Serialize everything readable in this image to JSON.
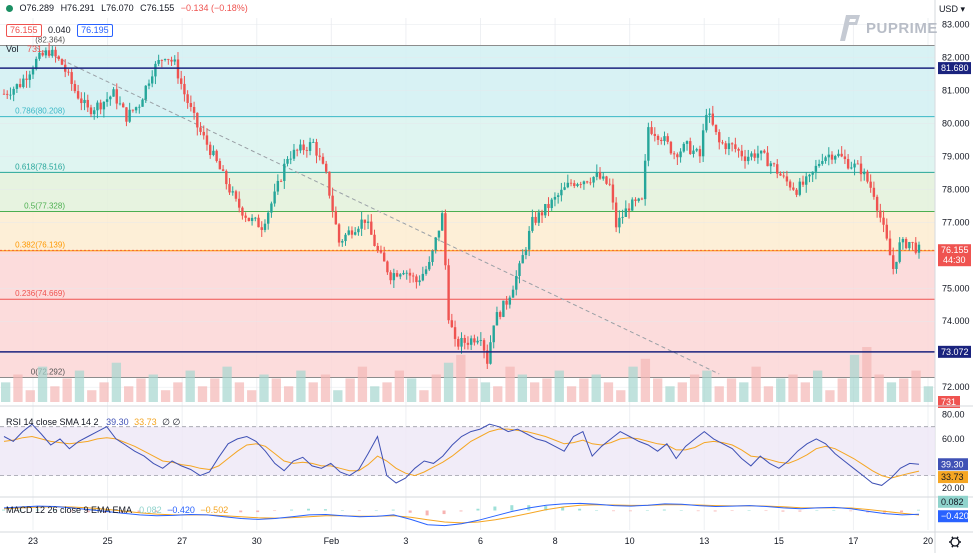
{
  "header": {
    "ohlc": {
      "open": "O76.289",
      "high": "H76.291",
      "low": "L76.070",
      "close": "C76.155",
      "change": "−0.134 (−0.18%)"
    },
    "bid": "76.155",
    "spread": "0.040",
    "ask": "76.195",
    "currency": "USD",
    "volume_label": "Vol",
    "volume_value": "731",
    "brand": "PUPRIME"
  },
  "colors": {
    "up": "#26a69a",
    "down": "#ef5350",
    "level_line": "#1a237e",
    "price_tag": "#ef5350",
    "rsi_line": "#3f51b5",
    "rsi_sma": "#f5a623",
    "macd_line": "#2962ff",
    "signal_line": "#f5a623"
  },
  "chart_data": [
    {
      "type": "candlestick",
      "title": "",
      "x_ticks": [
        "23",
        "25",
        "27",
        "30",
        "Feb",
        "3",
        "6",
        "8",
        "10",
        "13",
        "15",
        "17",
        "20"
      ],
      "y_ticks": [
        "83.000",
        "82.000",
        "81.000",
        "80.000",
        "79.000",
        "78.000",
        "77.000",
        "76.000",
        "75.000",
        "74.000",
        "73.000",
        "72.000"
      ],
      "ylim": [
        71.55,
        83.2
      ],
      "grid": true,
      "last_price": 76.155,
      "last_price_label": "76.155",
      "countdown": "44:30",
      "horizontal_levels": [
        {
          "value": 81.68,
          "label": "81.680"
        },
        {
          "value": 73.072,
          "label": "73.072"
        }
      ],
      "fibonacci": {
        "levels": [
          {
            "ratio": "1",
            "value": 82.364,
            "label": "(82.364)",
            "fill": "#e0e0e0",
            "line": "#8c8c8c"
          },
          {
            "ratio": "0.786",
            "value": 80.208,
            "label": "0.786(80.208)",
            "fill": "#d1f0f2",
            "line": "#3bb8c6"
          },
          {
            "ratio": "0.618",
            "value": 78.516,
            "label": "0.618(78.516)",
            "fill": "#d9f3ee",
            "line": "#26a69a"
          },
          {
            "ratio": "0.5",
            "value": 77.328,
            "label": "0.5(77.328)",
            "fill": "#e3f1da",
            "line": "#4caf50"
          },
          {
            "ratio": "0.382",
            "value": 76.139,
            "label": "0.382(76.139)",
            "fill": "#fdecd0",
            "line": "#ff9800"
          },
          {
            "ratio": "0.236",
            "value": 74.669,
            "label": "0.236(74.669)",
            "fill": "#fbd6d6",
            "line": "#ef5350"
          },
          {
            "ratio": "0",
            "value": 72.292,
            "label": "0(72.292)",
            "fill": "#fbd6d6",
            "line": "#8c8c8c"
          }
        ]
      },
      "close_path": [
        [
          0,
          80.9
        ],
        [
          5,
          81.2
        ],
        [
          10,
          81.9
        ],
        [
          14,
          82.2
        ],
        [
          18,
          81.8
        ],
        [
          22,
          81.0
        ],
        [
          26,
          80.4
        ],
        [
          30,
          80.6
        ],
        [
          34,
          80.9
        ],
        [
          38,
          80.2
        ],
        [
          42,
          80.6
        ],
        [
          46,
          81.6
        ],
        [
          50,
          82.1
        ],
        [
          53,
          81.8
        ],
        [
          56,
          80.9
        ],
        [
          60,
          79.9
        ],
        [
          64,
          79.2
        ],
        [
          68,
          78.4
        ],
        [
          72,
          77.6
        ],
        [
          76,
          77.1
        ],
        [
          80,
          76.9
        ],
        [
          84,
          77.8
        ],
        [
          88,
          79.0
        ],
        [
          92,
          79.2
        ],
        [
          96,
          79.4
        ],
        [
          100,
          78.4
        ],
        [
          104,
          76.4
        ],
        [
          108,
          76.8
        ],
        [
          112,
          77.1
        ],
        [
          116,
          76.1
        ],
        [
          120,
          75.4
        ],
        [
          124,
          75.6
        ],
        [
          128,
          75.2
        ],
        [
          132,
          75.7
        ],
        [
          136,
          77.2
        ],
        [
          138,
          74.2
        ],
        [
          140,
          73.3
        ],
        [
          144,
          73.4
        ],
        [
          148,
          73.6
        ],
        [
          150,
          72.8
        ],
        [
          152,
          74.0
        ],
        [
          156,
          74.6
        ],
        [
          160,
          75.6
        ],
        [
          164,
          77.0
        ],
        [
          168,
          77.4
        ],
        [
          172,
          77.8
        ],
        [
          176,
          78.2
        ],
        [
          180,
          78.3
        ],
        [
          184,
          78.4
        ],
        [
          188,
          78.1
        ],
        [
          190,
          76.9
        ],
        [
          194,
          77.5
        ],
        [
          198,
          77.6
        ],
        [
          200,
          79.9
        ],
        [
          204,
          79.6
        ],
        [
          208,
          79.1
        ],
        [
          212,
          79.3
        ],
        [
          216,
          79.0
        ],
        [
          218,
          80.4
        ],
        [
          222,
          79.4
        ],
        [
          226,
          79.3
        ],
        [
          230,
          79.0
        ],
        [
          234,
          79.1
        ],
        [
          238,
          78.8
        ],
        [
          242,
          78.3
        ],
        [
          246,
          78.0
        ],
        [
          250,
          78.3
        ],
        [
          254,
          79.0
        ],
        [
          258,
          79.1
        ],
        [
          262,
          78.8
        ],
        [
          266,
          78.6
        ],
        [
          270,
          77.9
        ],
        [
          274,
          76.4
        ],
        [
          276,
          75.6
        ],
        [
          278,
          76.3
        ],
        [
          281,
          76.4
        ],
        [
          284,
          76.155
        ]
      ],
      "volume_bars": [
        5,
        7,
        3,
        9,
        4,
        6,
        8,
        3,
        5,
        10,
        4,
        6,
        7,
        3,
        5,
        8,
        4,
        6,
        9,
        5,
        3,
        7,
        6,
        4,
        8,
        5,
        7,
        3,
        6,
        9,
        4,
        5,
        8,
        6,
        3,
        7,
        10,
        12,
        6,
        5,
        4,
        9,
        7,
        5,
        6,
        8,
        4,
        6,
        7,
        5,
        3,
        9,
        11,
        6,
        4,
        5,
        7,
        8,
        4,
        6,
        5,
        9,
        4,
        6,
        7,
        5,
        8,
        3,
        6,
        12,
        14,
        7,
        5,
        6,
        8,
        4
      ]
    },
    {
      "type": "line",
      "label": "RSI 14 close SMA 14 2",
      "series": [
        {
          "name": "RSI",
          "value_label": "39.30"
        },
        {
          "name": "SMA",
          "value_label": "33.73"
        }
      ],
      "legend_extra": "∅  ∅",
      "y_ticks": [
        "80.00",
        "60.00",
        "40.00",
        "20.00"
      ],
      "ylim": [
        15,
        82
      ],
      "bands": [
        70,
        30
      ],
      "rsi": [
        62,
        58,
        66,
        72,
        64,
        55,
        60,
        52,
        58,
        62,
        66,
        70,
        60,
        55,
        50,
        46,
        40,
        36,
        42,
        38,
        35,
        30,
        33,
        45,
        56,
        60,
        62,
        58,
        50,
        40,
        34,
        42,
        45,
        38,
        36,
        40,
        33,
        30,
        35,
        48,
        62,
        30,
        24,
        28,
        36,
        42,
        40,
        46,
        55,
        62,
        66,
        68,
        72,
        70,
        66,
        68,
        64,
        60,
        58,
        54,
        50,
        62,
        66,
        46,
        54,
        60,
        66,
        62,
        58,
        55,
        50,
        56,
        44,
        54,
        60,
        66,
        60,
        56,
        52,
        44,
        38,
        46,
        40,
        36,
        42,
        50,
        56,
        60,
        56,
        48,
        42,
        36,
        30,
        24,
        22,
        28,
        36,
        40,
        39.3
      ],
      "sma": [
        58,
        59,
        61,
        62,
        60,
        58,
        57,
        56,
        57,
        58,
        60,
        61,
        60,
        57,
        54,
        50,
        46,
        42,
        41,
        39,
        38,
        36,
        35,
        38,
        44,
        50,
        55,
        56,
        54,
        48,
        42,
        40,
        41,
        40,
        38,
        38,
        36,
        34,
        34,
        39,
        46,
        42,
        36,
        32,
        30,
        33,
        37,
        41,
        46,
        52,
        58,
        62,
        66,
        68,
        68,
        67,
        66,
        64,
        62,
        59,
        56,
        57,
        59,
        56,
        55,
        57,
        60,
        61,
        60,
        58,
        56,
        55,
        51,
        51,
        53,
        57,
        58,
        57,
        55,
        51,
        46,
        45,
        43,
        41,
        40,
        43,
        47,
        52,
        54,
        52,
        48,
        44,
        39,
        34,
        30,
        28,
        30,
        32,
        33.73
      ]
    },
    {
      "type": "line",
      "label": "MACD 12 26 close 9 EMA EMA",
      "series": [
        {
          "name": "Histogram",
          "value_label": "0.082"
        },
        {
          "name": "MACD",
          "value_label": "−0.420"
        },
        {
          "name": "Signal",
          "value_label": "−0.502"
        }
      ],
      "ylim": [
        -2.2,
        1.3
      ],
      "macd": [
        0.3,
        0.4,
        0.5,
        0.45,
        0.3,
        0.1,
        -0.1,
        -0.3,
        -0.5,
        -0.6,
        -0.55,
        -0.45,
        -0.5,
        -0.7,
        -0.9,
        -1.0,
        -0.9,
        -0.7,
        -0.5,
        -0.45,
        -0.6,
        -0.7,
        -0.65,
        -0.5,
        -1.0,
        -1.6,
        -1.7,
        -1.5,
        -1.1,
        -0.6,
        -0.1,
        0.3,
        0.6,
        0.75,
        0.8,
        0.7,
        0.55,
        0.5,
        0.6,
        0.75,
        0.7,
        0.55,
        0.45,
        0.5,
        0.55,
        0.45,
        0.3,
        0.2,
        0.3,
        0.35,
        0.2,
        -0.1,
        -0.35,
        -0.5,
        -0.42
      ],
      "signal": [
        0.2,
        0.3,
        0.38,
        0.42,
        0.4,
        0.3,
        0.15,
        -0.05,
        -0.25,
        -0.4,
        -0.5,
        -0.5,
        -0.5,
        -0.58,
        -0.7,
        -0.82,
        -0.86,
        -0.8,
        -0.7,
        -0.6,
        -0.6,
        -0.64,
        -0.65,
        -0.6,
        -0.75,
        -1.05,
        -1.3,
        -1.4,
        -1.3,
        -1.05,
        -0.7,
        -0.3,
        0.1,
        0.4,
        0.6,
        0.65,
        0.62,
        0.58,
        0.58,
        0.64,
        0.66,
        0.62,
        0.55,
        0.52,
        0.53,
        0.5,
        0.42,
        0.32,
        0.3,
        0.32,
        0.28,
        0.12,
        -0.1,
        -0.3,
        -0.502
      ]
    }
  ]
}
